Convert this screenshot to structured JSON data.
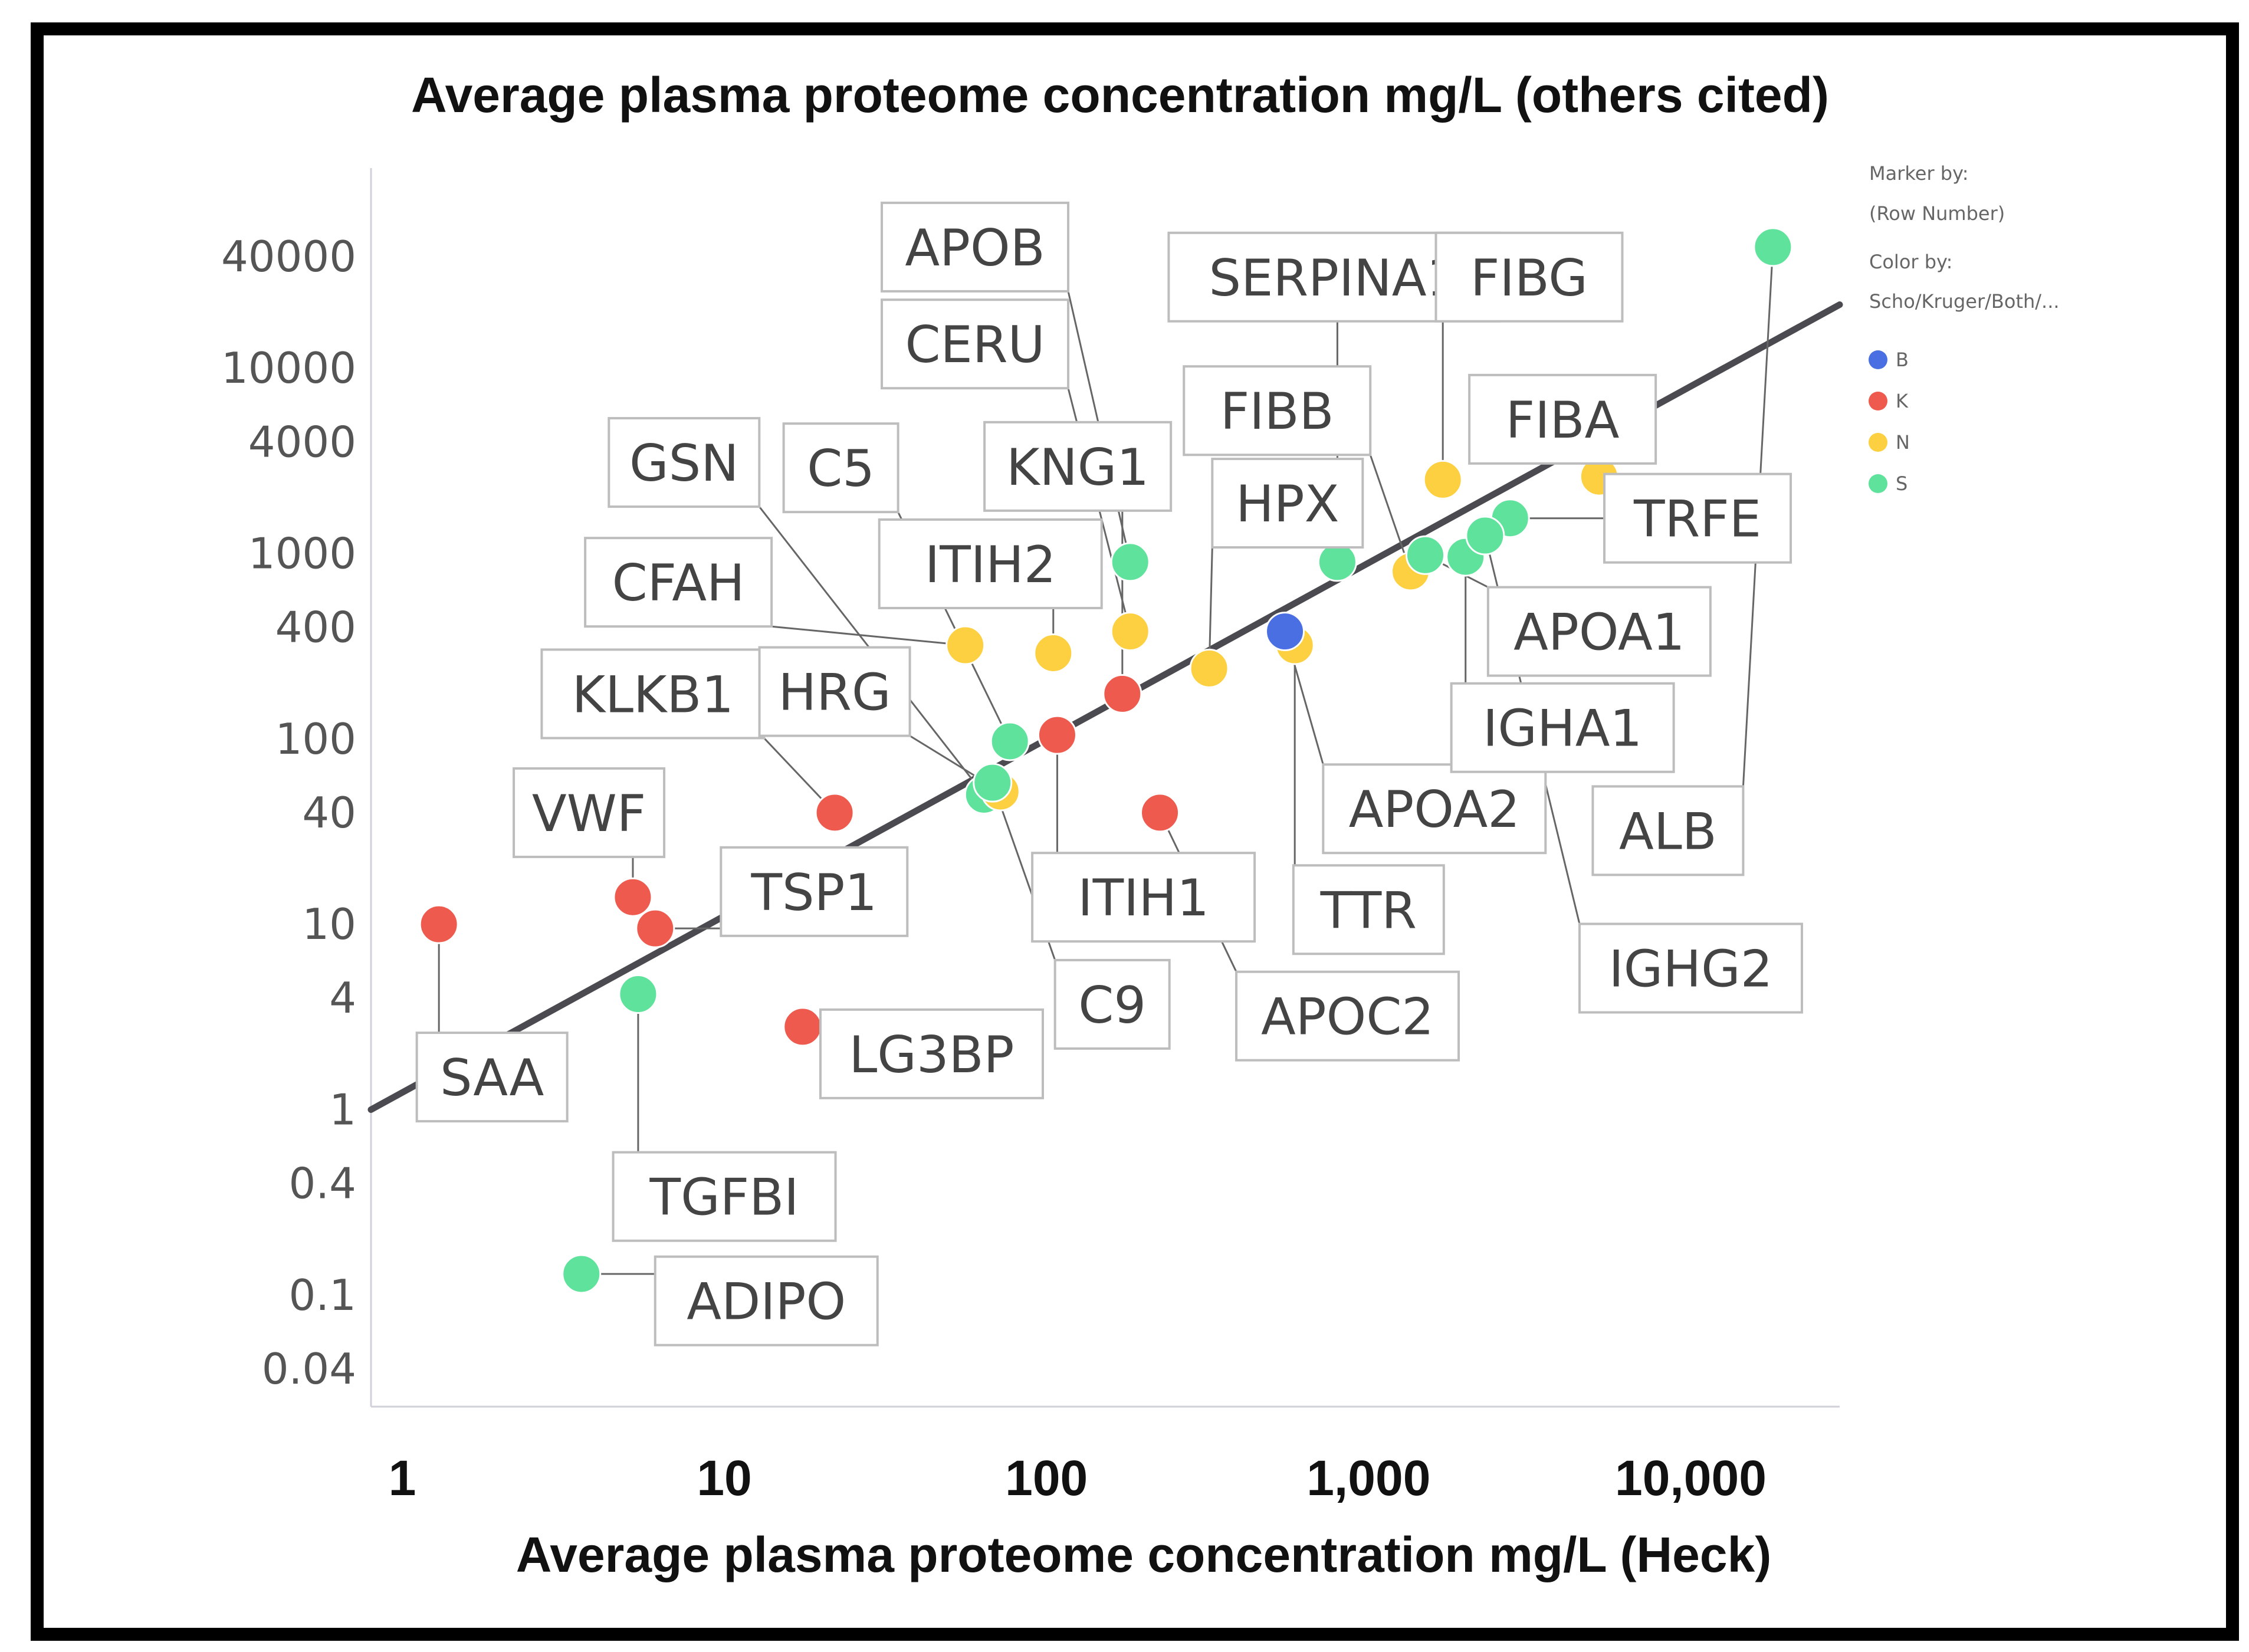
{
  "chart_data": {
    "type": "scatter",
    "title": "Average plasma proteome concentration mg/L (others cited)",
    "xlabel": "Average plasma proteome concentration mg/L (Heck)",
    "ylabel": "",
    "xscale": "log",
    "yscale": "log",
    "xlim": [
      0.8,
      29000
    ],
    "ylim": [
      0.025,
      120000
    ],
    "xticks": [
      {
        "value": 1,
        "label": "1"
      },
      {
        "value": 10,
        "label": "10"
      },
      {
        "value": 100,
        "label": "100"
      },
      {
        "value": 1000,
        "label": "1,000"
      },
      {
        "value": 10000,
        "label": "10,000"
      }
    ],
    "yticks": [
      {
        "value": 40000,
        "label": "40000"
      },
      {
        "value": 10000,
        "label": "10000"
      },
      {
        "value": 4000,
        "label": "4000"
      },
      {
        "value": 1000,
        "label": "1000"
      },
      {
        "value": 400,
        "label": "400"
      },
      {
        "value": 100,
        "label": "100"
      },
      {
        "value": 40,
        "label": "40"
      },
      {
        "value": 10,
        "label": "10"
      },
      {
        "value": 4,
        "label": "4"
      },
      {
        "value": 1,
        "label": "1"
      },
      {
        "value": 0.4,
        "label": "0.4"
      },
      {
        "value": 0.1,
        "label": "0.1"
      },
      {
        "value": 0.04,
        "label": "0.04"
      }
    ],
    "trendline": {
      "x": [
        0.8,
        29000
      ],
      "y": [
        1.0,
        22000
      ]
    },
    "legend": {
      "title1": "Marker by:",
      "subtitle1": "(Row Number)",
      "title2": "Color by:",
      "subtitle2": "Scho/Kruger/Both/...",
      "placement": "top-right",
      "entries": [
        {
          "key": "B",
          "label": "B",
          "color": "#4a6fe3"
        },
        {
          "key": "K",
          "label": "K",
          "color": "#ef5a4e"
        },
        {
          "key": "N",
          "label": "N",
          "color": "#fcd041"
        },
        {
          "key": "S",
          "label": "S",
          "color": "#5fe29c"
        }
      ]
    },
    "points": [
      {
        "name": "SAA",
        "x": 1.3,
        "y": 10,
        "group": "K",
        "label_anchor": [
          1.9,
          1.5
        ]
      },
      {
        "name": "VWF",
        "x": 5.2,
        "y": 14,
        "group": "K",
        "label_anchor": [
          3.8,
          40
        ]
      },
      {
        "name": "TSP1",
        "x": 6.1,
        "y": 9.5,
        "group": "K",
        "label_anchor": [
          19,
          15
        ]
      },
      {
        "name": "TGFBI",
        "x": 5.4,
        "y": 4.2,
        "group": "S",
        "label_anchor": [
          10,
          0.34
        ]
      },
      {
        "name": "ADIPO",
        "x": 3.6,
        "y": 0.13,
        "group": "S",
        "label_anchor": [
          13.5,
          0.093
        ]
      },
      {
        "name": "KLKB1",
        "x": 22,
        "y": 40,
        "group": "K",
        "label_anchor": [
          6,
          175
        ]
      },
      {
        "name": "LG3BP",
        "x": 17.5,
        "y": 2.8,
        "group": "K",
        "label_anchor": [
          44,
          2.0
        ]
      },
      {
        "name": "GSN",
        "x": 64,
        "y": 50,
        "group": "S",
        "label_anchor": [
          7.5,
          3100
        ]
      },
      {
        "name": "C5",
        "x": 77,
        "y": 97,
        "group": "S",
        "label_anchor": [
          23,
          2900
        ]
      },
      {
        "name": "CFAH",
        "x": 56,
        "y": 320,
        "group": "N",
        "label_anchor": [
          7.2,
          700
        ]
      },
      {
        "name": "HRG",
        "x": 72,
        "y": 52,
        "group": "N",
        "label_anchor": [
          22,
          180
        ]
      },
      {
        "name": "ITIH2",
        "x": 105,
        "y": 290,
        "group": "N",
        "label_anchor": [
          67,
          880
        ]
      },
      {
        "name": "ITIH1",
        "x": 108,
        "y": 105,
        "group": "K",
        "label_anchor": [
          200,
          14
        ]
      },
      {
        "name": "C9",
        "x": 68,
        "y": 58,
        "group": "S",
        "label_anchor": [
          160,
          3.7
        ]
      },
      {
        "name": "APOB",
        "x": 182,
        "y": 900,
        "group": "S",
        "label_anchor": [
          60,
          45000
        ]
      },
      {
        "name": "CERU",
        "x": 182,
        "y": 380,
        "group": "N",
        "label_anchor": [
          60,
          13500
        ]
      },
      {
        "name": "KNG1",
        "x": 172,
        "y": 175,
        "group": "K",
        "label_anchor": [
          125,
          2950
        ]
      },
      {
        "name": "APOC2",
        "x": 225,
        "y": 40,
        "group": "K",
        "label_anchor": [
          860,
          3.2
        ]
      },
      {
        "name": "HPX",
        "x": 320,
        "y": 240,
        "group": "N",
        "label_anchor": [
          560,
          1870
        ]
      },
      {
        "name": "TTR",
        "x": 590,
        "y": 320,
        "group": "N",
        "label_anchor": [
          1000,
          12
        ]
      },
      {
        "name": "APOA2",
        "x": 550,
        "y": 380,
        "group": "B",
        "label_anchor": [
          1600,
          42
        ]
      },
      {
        "name": "SERPINA1",
        "x": 800,
        "y": 900,
        "group": "S",
        "label_anchor": [
          780,
          31000
        ]
      },
      {
        "name": "FIBB",
        "x": 1350,
        "y": 800,
        "group": "N",
        "label_anchor": [
          520,
          5900
        ]
      },
      {
        "name": "FIBG",
        "x": 1700,
        "y": 2500,
        "group": "N",
        "label_anchor": [
          3150,
          31000
        ]
      },
      {
        "name": "FIBA",
        "x": 5200,
        "y": 2600,
        "group": "N",
        "label_anchor": [
          4000,
          5300
        ]
      },
      {
        "name": "TRFE",
        "x": 2750,
        "y": 1550,
        "group": "S",
        "label_anchor": [
          10500,
          1550
        ]
      },
      {
        "name": "APOA1",
        "x": 1500,
        "y": 980,
        "group": "S",
        "label_anchor": [
          5200,
          380
        ]
      },
      {
        "name": "IGHA1",
        "x": 2000,
        "y": 960,
        "group": "S",
        "label_anchor": [
          4000,
          115
        ]
      },
      {
        "name": "ALB",
        "x": 18000,
        "y": 45000,
        "group": "S",
        "label_anchor": [
          8500,
          32
        ]
      },
      {
        "name": "IGHG2",
        "x": 2300,
        "y": 1250,
        "group": "S",
        "label_anchor": [
          10000,
          5.8
        ]
      }
    ]
  }
}
